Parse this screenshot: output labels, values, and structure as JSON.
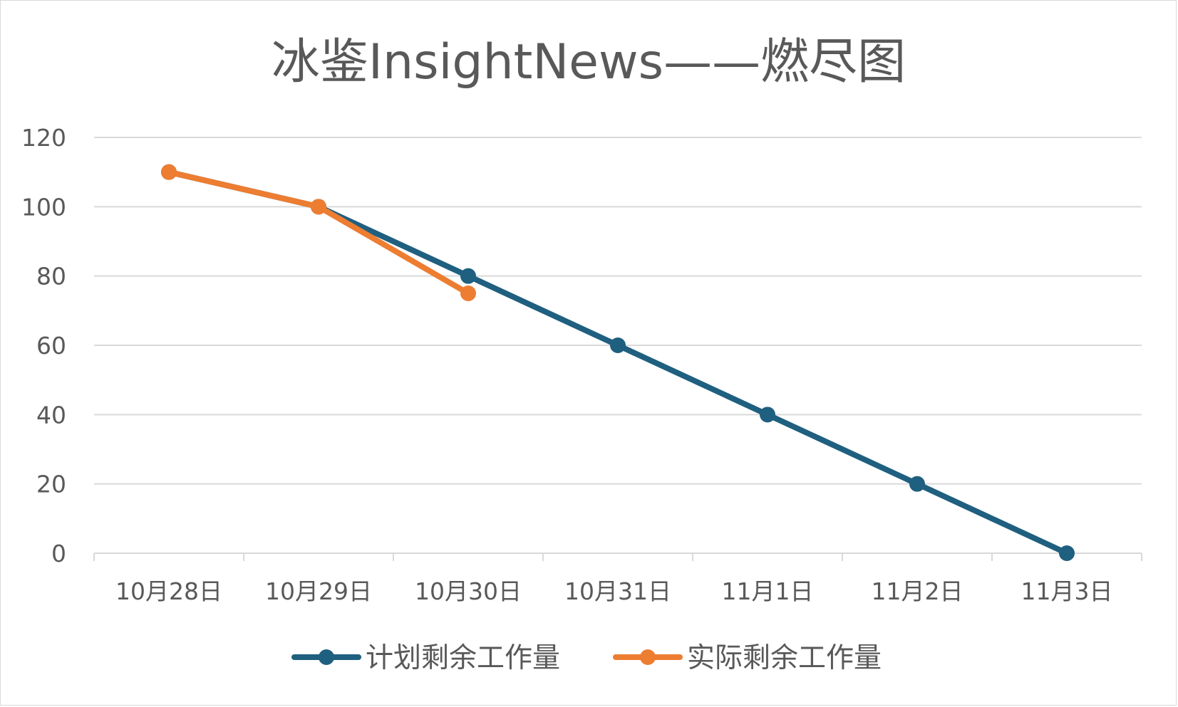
{
  "chart_data": {
    "type": "line",
    "title": "冰鉴InsightNews——燃尽图",
    "xlabel": "",
    "ylabel": "",
    "categories": [
      "10月28日",
      "10月29日",
      "10月30日",
      "10月31日",
      "11月1日",
      "11月2日",
      "11月3日"
    ],
    "ylim": [
      0,
      120
    ],
    "yticks": [
      0,
      20,
      40,
      60,
      80,
      100,
      120
    ],
    "grid": true,
    "legend_position": "bottom",
    "series": [
      {
        "name": "计划剩余工作量",
        "color": "#1f5f7f",
        "values": [
          110,
          100,
          80,
          60,
          40,
          20,
          0
        ]
      },
      {
        "name": "实际剩余工作量",
        "color": "#ed7d31",
        "values": [
          110,
          100,
          75,
          null,
          null,
          null,
          null
        ]
      }
    ]
  }
}
